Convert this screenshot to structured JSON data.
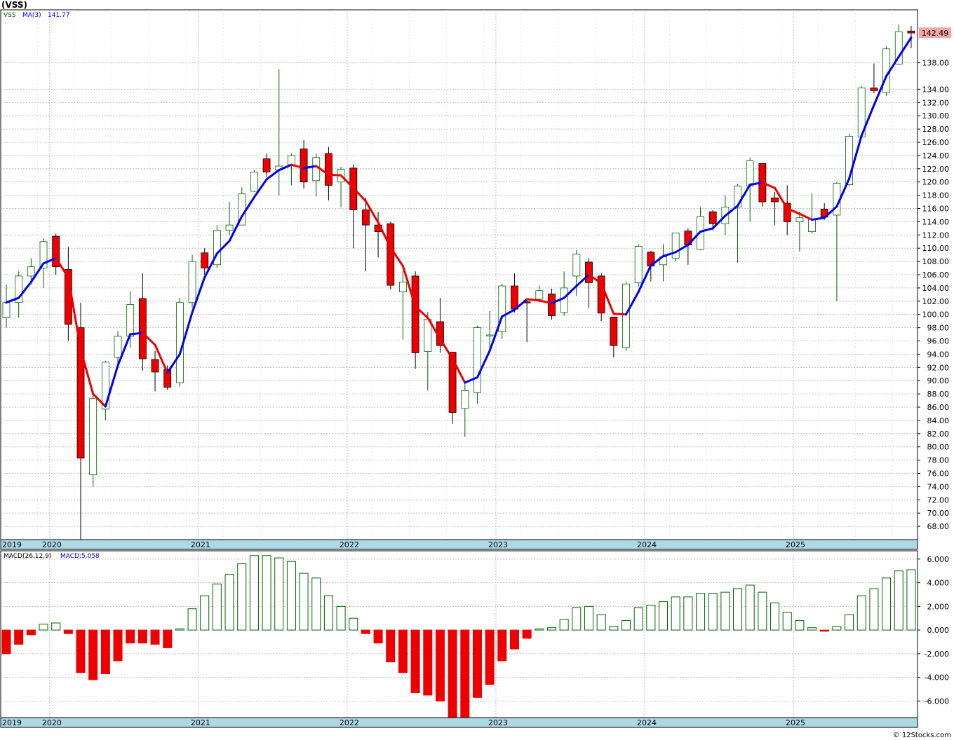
{
  "title": "(VSS)",
  "credit": "© 12Stocks.com",
  "colors": {
    "up_fill": "#ffffff",
    "up_stroke": "#006400",
    "down_fill": "#ee0000",
    "ma_up": "#0000ee",
    "ma_down": "#ee0000",
    "price_tag": "#f4a6a6",
    "axis_band": "#add8e6",
    "grid": "#b0b0b0"
  },
  "chart_data": [
    {
      "type": "candlestick",
      "legend": {
        "symbol": "VSS",
        "ma_label": "MA(3)",
        "ma_value": "141.77"
      },
      "last_price_tag": "142.49",
      "ylim": [
        66,
        146
      ],
      "y_ticks": [
        68,
        70,
        72,
        74,
        76,
        78,
        80,
        82,
        84,
        86,
        88,
        90,
        92,
        94,
        96,
        98,
        100,
        102,
        104,
        106,
        108,
        110,
        112,
        114,
        116,
        118,
        120,
        122,
        124,
        126,
        128,
        130,
        132,
        134,
        138
      ],
      "y_tick_labels": [
        "68.00",
        "70.00",
        "72.00",
        "74.00",
        "76.00",
        "78.00",
        "80.00",
        "82.00",
        "84.00",
        "86.00",
        "88.00",
        "90.00",
        "92.00",
        "94.00",
        "96.00",
        "98.00",
        "100.00",
        "102.00",
        "104.00",
        "106.00",
        "108.00",
        "110.00",
        "112.00",
        "114.00",
        "116.00",
        "118.00",
        "120.00",
        "122.00",
        "124.00",
        "126.00",
        "128.00",
        "130.00",
        "132.00",
        "134.00",
        "138.00"
      ],
      "x_year_labels": [
        "2019",
        "2020",
        "2021",
        "2022",
        "2023",
        "2024",
        "2025"
      ],
      "x_year_start_index": [
        0,
        4,
        16,
        28,
        40,
        52,
        64
      ],
      "candles": [
        {
          "o": 99.5,
          "h": 104.5,
          "l": 98.0,
          "c": 101.8
        },
        {
          "o": 101.8,
          "h": 106.5,
          "l": 99.5,
          "c": 105.8
        },
        {
          "o": 105.8,
          "h": 108.5,
          "l": 104.5,
          "c": 107.2
        },
        {
          "o": 107.0,
          "h": 111.5,
          "l": 104.0,
          "c": 111.0
        },
        {
          "o": 111.8,
          "h": 112.2,
          "l": 106.0,
          "c": 107.2
        },
        {
          "o": 106.8,
          "h": 110.2,
          "l": 96.0,
          "c": 98.5
        },
        {
          "o": 98.0,
          "h": 101.8,
          "l": 66.0,
          "c": 78.3
        },
        {
          "o": 75.8,
          "h": 88.0,
          "l": 74.0,
          "c": 87.3
        },
        {
          "o": 85.7,
          "h": 93.0,
          "l": 84.0,
          "c": 92.8
        },
        {
          "o": 93.5,
          "h": 97.5,
          "l": 92.5,
          "c": 96.7
        },
        {
          "o": 96.7,
          "h": 103.5,
          "l": 95.0,
          "c": 101.5
        },
        {
          "o": 102.4,
          "h": 106.2,
          "l": 91.5,
          "c": 93.3
        },
        {
          "o": 93.2,
          "h": 94.5,
          "l": 88.4,
          "c": 91.3
        },
        {
          "o": 91.7,
          "h": 92.3,
          "l": 88.6,
          "c": 89.0
        },
        {
          "o": 89.7,
          "h": 102.5,
          "l": 89.1,
          "c": 101.8
        },
        {
          "o": 101.8,
          "h": 109.0,
          "l": 101.0,
          "c": 108.0
        },
        {
          "o": 109.3,
          "h": 110.0,
          "l": 106.0,
          "c": 107.0
        },
        {
          "o": 107.5,
          "h": 113.5,
          "l": 107.0,
          "c": 112.7
        },
        {
          "o": 112.7,
          "h": 117.0,
          "l": 112.0,
          "c": 113.5
        },
        {
          "o": 113.5,
          "h": 119.2,
          "l": 114.0,
          "c": 118.2
        },
        {
          "o": 118.6,
          "h": 121.8,
          "l": 118.5,
          "c": 121.5
        },
        {
          "o": 123.5,
          "h": 124.3,
          "l": 120.8,
          "c": 121.5
        },
        {
          "o": 121.8,
          "h": 137.0,
          "l": 118.0,
          "c": 122.4
        },
        {
          "o": 122.6,
          "h": 124.3,
          "l": 119.5,
          "c": 124.0
        },
        {
          "o": 125.0,
          "h": 126.3,
          "l": 119.0,
          "c": 120.0
        },
        {
          "o": 120.2,
          "h": 124.3,
          "l": 117.8,
          "c": 123.7
        },
        {
          "o": 124.3,
          "h": 125.3,
          "l": 117.2,
          "c": 119.5
        },
        {
          "o": 120.0,
          "h": 122.3,
          "l": 116.2,
          "c": 121.9
        },
        {
          "o": 122.1,
          "h": 122.6,
          "l": 110.0,
          "c": 115.8
        },
        {
          "o": 115.8,
          "h": 117.6,
          "l": 106.5,
          "c": 113.5
        },
        {
          "o": 113.5,
          "h": 115.5,
          "l": 108.6,
          "c": 112.5
        },
        {
          "o": 113.7,
          "h": 114.0,
          "l": 103.8,
          "c": 104.4
        },
        {
          "o": 103.4,
          "h": 106.6,
          "l": 96.2,
          "c": 104.9
        },
        {
          "o": 105.8,
          "h": 106.5,
          "l": 91.8,
          "c": 94.2
        },
        {
          "o": 94.4,
          "h": 100.4,
          "l": 88.5,
          "c": 99.3
        },
        {
          "o": 98.9,
          "h": 102.5,
          "l": 94.2,
          "c": 95.3
        },
        {
          "o": 94.3,
          "h": 94.2,
          "l": 83.5,
          "c": 85.2
        },
        {
          "o": 85.8,
          "h": 90.0,
          "l": 81.5,
          "c": 88.5
        },
        {
          "o": 88.2,
          "h": 98.3,
          "l": 86.5,
          "c": 98.0
        },
        {
          "o": 96.8,
          "h": 100.5,
          "l": 94.5,
          "c": 96.9
        },
        {
          "o": 97.4,
          "h": 104.6,
          "l": 96.3,
          "c": 104.3
        },
        {
          "o": 104.3,
          "h": 106.2,
          "l": 100.3,
          "c": 100.8
        },
        {
          "o": 101.9,
          "h": 102.4,
          "l": 95.8,
          "c": 101.8
        },
        {
          "o": 102.3,
          "h": 104.4,
          "l": 101.8,
          "c": 103.6
        },
        {
          "o": 103.1,
          "h": 103.9,
          "l": 99.2,
          "c": 99.8
        },
        {
          "o": 100.3,
          "h": 106.5,
          "l": 99.8,
          "c": 104.0
        },
        {
          "o": 105.8,
          "h": 109.7,
          "l": 102.8,
          "c": 109.1
        },
        {
          "o": 107.9,
          "h": 108.5,
          "l": 101.0,
          "c": 104.8
        },
        {
          "o": 105.8,
          "h": 106.2,
          "l": 99.0,
          "c": 100.2
        },
        {
          "o": 99.6,
          "h": 99.6,
          "l": 93.5,
          "c": 95.3
        },
        {
          "o": 95.0,
          "h": 105.0,
          "l": 94.5,
          "c": 104.6
        },
        {
          "o": 104.8,
          "h": 110.6,
          "l": 104.2,
          "c": 110.3
        },
        {
          "o": 109.4,
          "h": 109.6,
          "l": 105.0,
          "c": 107.3
        },
        {
          "o": 107.5,
          "h": 110.6,
          "l": 105.0,
          "c": 108.7
        },
        {
          "o": 108.5,
          "h": 112.3,
          "l": 108.0,
          "c": 112.3
        },
        {
          "o": 112.6,
          "h": 113.0,
          "l": 107.5,
          "c": 110.5
        },
        {
          "o": 109.8,
          "h": 116.2,
          "l": 109.7,
          "c": 114.8
        },
        {
          "o": 115.5,
          "h": 115.8,
          "l": 112.7,
          "c": 113.7
        },
        {
          "o": 113.7,
          "h": 118.0,
          "l": 112.0,
          "c": 116.2
        },
        {
          "o": 116.2,
          "h": 119.7,
          "l": 107.8,
          "c": 119.4
        },
        {
          "o": 119.4,
          "h": 123.7,
          "l": 114.0,
          "c": 123.2
        },
        {
          "o": 122.8,
          "h": 122.8,
          "l": 116.3,
          "c": 117.0
        },
        {
          "o": 117.6,
          "h": 118.5,
          "l": 113.5,
          "c": 117.0
        },
        {
          "o": 116.8,
          "h": 119.5,
          "l": 112.0,
          "c": 114.0
        },
        {
          "o": 114.0,
          "h": 115.5,
          "l": 109.5,
          "c": 114.6
        },
        {
          "o": 112.5,
          "h": 118.3,
          "l": 112.2,
          "c": 114.4
        },
        {
          "o": 115.9,
          "h": 116.8,
          "l": 114.3,
          "c": 114.7
        },
        {
          "o": 115.0,
          "h": 120.0,
          "l": 102.0,
          "c": 119.8
        },
        {
          "o": 119.6,
          "h": 127.3,
          "l": 119.4,
          "c": 126.9
        },
        {
          "o": 126.8,
          "h": 134.5,
          "l": 126.8,
          "c": 134.2
        },
        {
          "o": 134.2,
          "h": 137.9,
          "l": 133.4,
          "c": 133.8
        },
        {
          "o": 133.5,
          "h": 140.5,
          "l": 133.0,
          "c": 140.1
        },
        {
          "o": 137.8,
          "h": 143.8,
          "l": 137.7,
          "c": 142.7
        },
        {
          "o": 142.8,
          "h": 143.6,
          "l": 140.2,
          "c": 142.5
        }
      ],
      "ma3": [
        101.8,
        102.5,
        104.9,
        107.7,
        108.5,
        105.6,
        94.7,
        88.0,
        86.1,
        92.3,
        97.0,
        97.2,
        95.4,
        91.2,
        94.0,
        100.3,
        105.6,
        109.2,
        111.1,
        114.8,
        117.7,
        120.4,
        121.8,
        122.6,
        122.1,
        122.4,
        121.1,
        121.0,
        119.1,
        117.1,
        113.9,
        110.1,
        107.3,
        101.2,
        99.5,
        96.3,
        93.3,
        89.7,
        90.5,
        94.5,
        99.7,
        100.7,
        102.3,
        102.1,
        101.7,
        102.5,
        104.3,
        106.0,
        104.7,
        100.1,
        100.0,
        103.4,
        107.4,
        108.8,
        109.4,
        110.5,
        112.5,
        113.0,
        114.9,
        116.4,
        119.6,
        119.9,
        119.1,
        116.0,
        115.2,
        114.3,
        114.6,
        116.3,
        120.5,
        127.0,
        131.6,
        136.0,
        138.9,
        141.8
      ]
    },
    {
      "type": "bar",
      "legend": {
        "label": "MACD(26,12,9)",
        "value_label": "MACD:5.058"
      },
      "ylim": [
        -7.4,
        6.7
      ],
      "y_ticks": [
        6,
        4,
        2,
        0,
        -2,
        -4,
        -6
      ],
      "y_tick_labels": [
        "6.000",
        "4.000",
        "2.000",
        "0.000",
        "-2.000",
        "-4.000",
        "-6.000"
      ],
      "x_year_labels": [
        "2019",
        "2020",
        "2021",
        "2022",
        "2023",
        "2024",
        "2025"
      ],
      "values": [
        -2.0,
        -1.2,
        -0.4,
        0.5,
        0.6,
        -0.3,
        -3.6,
        -4.2,
        -3.7,
        -2.6,
        -1.1,
        -1.1,
        -1.2,
        -1.5,
        0.1,
        1.8,
        2.9,
        3.9,
        4.7,
        5.6,
        6.3,
        6.3,
        6.1,
        5.8,
        4.8,
        4.4,
        2.9,
        2.0,
        1.0,
        -0.3,
        -1.1,
        -2.7,
        -3.6,
        -5.3,
        -5.5,
        -6.0,
        -7.4,
        -7.4,
        -5.7,
        -4.6,
        -2.6,
        -1.6,
        -0.7,
        0.1,
        0.2,
        0.9,
        1.9,
        2.0,
        1.3,
        0.3,
        0.8,
        1.9,
        2.1,
        2.4,
        2.8,
        2.8,
        3.1,
        3.1,
        3.2,
        3.5,
        3.8,
        3.2,
        2.3,
        1.5,
        0.8,
        0.2,
        -0.1,
        0.3,
        1.3,
        2.9,
        3.5,
        4.4,
        5.0,
        5.1
      ]
    }
  ]
}
